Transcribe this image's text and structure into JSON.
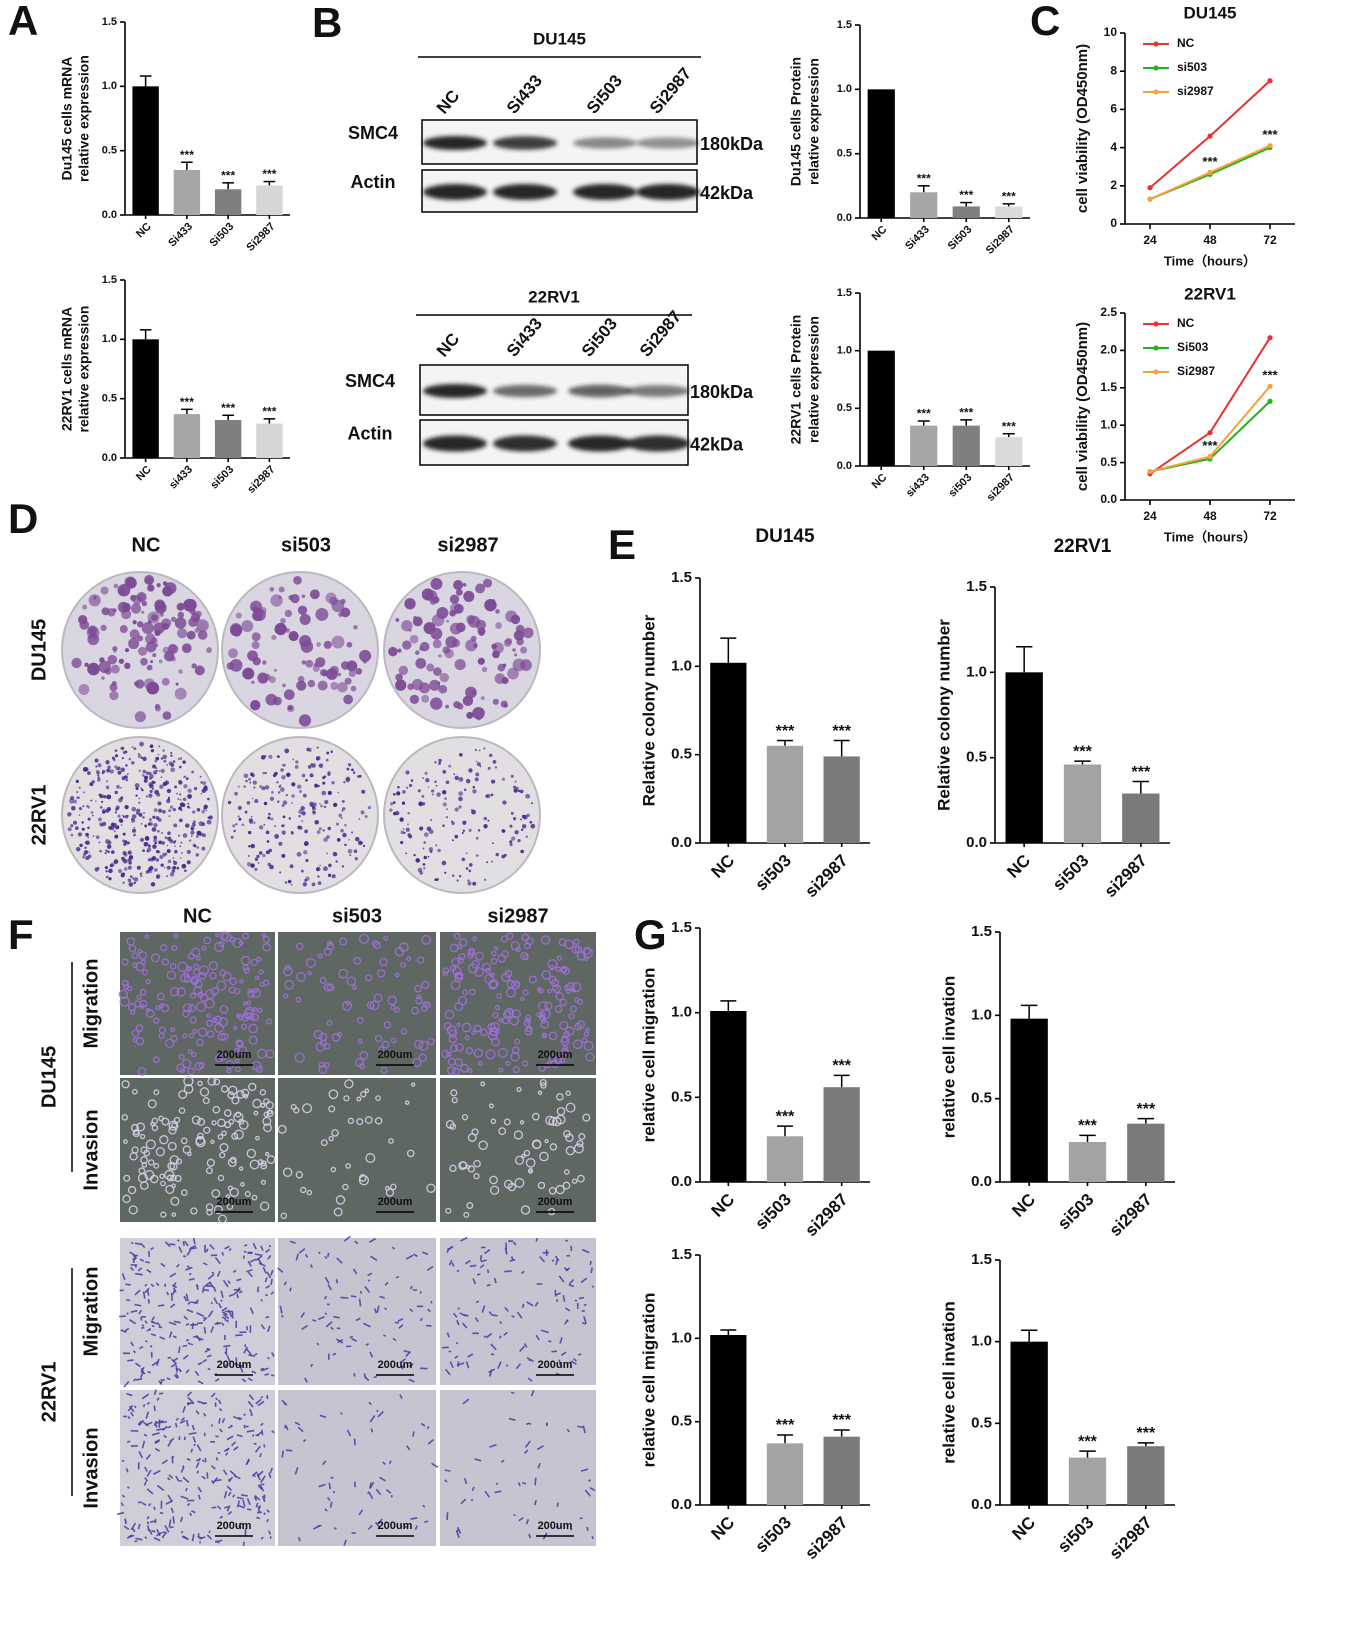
{
  "panel_labels": [
    "A",
    "B",
    "C",
    "D",
    "E",
    "F",
    "G"
  ],
  "blots": [
    {
      "title": "DU145",
      "lanes": [
        "NC",
        "Si433",
        "Si503",
        "Si2987"
      ],
      "rows": [
        {
          "name": "SMC4",
          "size": "180kDa"
        },
        {
          "name": "Actin",
          "size": "42kDa"
        }
      ]
    },
    {
      "title": "22RV1",
      "lanes": [
        "NC",
        "Si433",
        "Si503",
        "Si2987"
      ],
      "rows": [
        {
          "name": "SMC4",
          "size": "180kDa"
        },
        {
          "name": "Actin",
          "size": "42kDa"
        }
      ]
    }
  ],
  "colony": {
    "columns": [
      "NC",
      "si503",
      "si2987"
    ],
    "rows": [
      "DU145",
      "22RV1"
    ]
  },
  "transwell": {
    "columns": [
      "NC",
      "si503",
      "si2987"
    ],
    "groups": [
      {
        "name": "DU145",
        "rows": [
          "Migration",
          "Invasion"
        ]
      },
      {
        "name": "22RV1",
        "rows": [
          "Migration",
          "Invasion"
        ]
      }
    ],
    "scale_bar": "200um"
  },
  "chart_data": [
    {
      "type": "bar",
      "ylabel": [
        "Du145 cells mRNA",
        "relative expression"
      ],
      "categories": [
        "NC",
        "Si433",
        "Si503",
        "Si2987"
      ],
      "values": [
        1.0,
        0.35,
        0.2,
        0.23
      ],
      "errors": [
        0.08,
        0.06,
        0.05,
        0.03
      ],
      "significance": [
        null,
        "***",
        "***",
        "***"
      ],
      "colors": [
        "#000000",
        "#a6a6a8",
        "#7f7f7f",
        "#d6d6d6"
      ],
      "ylim": [
        0,
        1.5
      ],
      "yticks": [
        {
          "value": 0,
          "label": "0.0"
        },
        0.5,
        {
          "value": 1,
          "label": "1.0"
        },
        1.5
      ]
    },
    {
      "type": "bar",
      "ylabel": [
        "22RV1 cells mRNA",
        "relative expression"
      ],
      "categories": [
        "NC",
        "si433",
        "si503",
        "si2987"
      ],
      "values": [
        1.0,
        0.37,
        0.32,
        0.29
      ],
      "errors": [
        0.08,
        0.04,
        0.04,
        0.04
      ],
      "significance": [
        null,
        "***",
        "***",
        "***"
      ],
      "colors": [
        "#000000",
        "#a6a6a8",
        "#7f7f7f",
        "#d6d6d6"
      ],
      "ylim": [
        0,
        1.5
      ],
      "yticks": [
        {
          "value": 0,
          "label": "0.0"
        },
        0.5,
        {
          "value": 1,
          "label": "1.0"
        },
        1.5
      ]
    },
    {
      "type": "bar",
      "ylabel": [
        "Du145 cells Protein",
        "relative expression"
      ],
      "categories": [
        "NC",
        "Si433",
        "Si503",
        "Si2987"
      ],
      "values": [
        1.0,
        0.2,
        0.09,
        0.09
      ],
      "errors": [
        null,
        0.05,
        0.03,
        0.02
      ],
      "significance": [
        null,
        "***",
        "***",
        "***"
      ],
      "colors": [
        "#000000",
        "#a6a6a8",
        "#7f7f7f",
        "#dadada"
      ],
      "ylim": [
        0,
        1.5
      ],
      "yticks": [
        {
          "value": 0,
          "label": "0.0"
        },
        0.5,
        {
          "value": 1,
          "label": "1.0"
        },
        1.5
      ]
    },
    {
      "type": "bar",
      "ylabel": [
        "22RV1 cells Protein",
        "relative expression"
      ],
      "categories": [
        "NC",
        "si433",
        "si503",
        "si2987"
      ],
      "values": [
        1.0,
        0.35,
        0.35,
        0.25
      ],
      "errors": [
        null,
        0.04,
        0.05,
        0.03
      ],
      "significance": [
        null,
        "***",
        "***",
        "***"
      ],
      "colors": [
        "#000000",
        "#a6a6a8",
        "#7f7f7f",
        "#dadada"
      ],
      "ylim": [
        0,
        1.5
      ],
      "yticks": [
        {
          "value": 0,
          "label": "0.0"
        },
        0.5,
        {
          "value": 1,
          "label": "1.0"
        },
        1.5
      ]
    },
    {
      "type": "line",
      "title": "DU145",
      "xlabel": "Time（hours）",
      "ylabel": [
        "cell viability (OD450nm)"
      ],
      "x": [
        24,
        48,
        72
      ],
      "series": [
        {
          "name": "NC",
          "color": "#e8322f",
          "values": [
            1.9,
            4.6,
            7.5
          ]
        },
        {
          "name": "si503",
          "color": "#1fb31f",
          "values": [
            1.3,
            2.6,
            4.0
          ]
        },
        {
          "name": "si2987",
          "color": "#f5a23a",
          "values": [
            1.3,
            2.7,
            4.1
          ]
        }
      ],
      "significance": [
        null,
        "***",
        "***"
      ],
      "xlim": [
        14,
        82
      ],
      "xticks": [
        24,
        48,
        72
      ],
      "ylim": [
        0,
        10
      ],
      "yticks": [
        0,
        2,
        4,
        6,
        8,
        10
      ]
    },
    {
      "type": "line",
      "title": "22RV1",
      "xlabel": "Time（hours）",
      "ylabel": [
        "cell viability (OD450nm)"
      ],
      "x": [
        24,
        48,
        72
      ],
      "series": [
        {
          "name": "NC",
          "color": "#e8322f",
          "values": [
            0.35,
            0.9,
            2.17
          ]
        },
        {
          "name": "Si503",
          "color": "#1fb31f",
          "values": [
            0.38,
            0.55,
            1.32
          ]
        },
        {
          "name": "Si2987",
          "color": "#f5a23a",
          "values": [
            0.38,
            0.58,
            1.52
          ]
        }
      ],
      "significance": [
        null,
        "***",
        "***"
      ],
      "xlim": [
        14,
        82
      ],
      "xticks": [
        24,
        48,
        72
      ],
      "ylim": [
        0,
        2.5
      ],
      "yticks": [
        {
          "value": 0,
          "label": "0.0"
        },
        0.5,
        {
          "value": 1,
          "label": "1.0"
        },
        1.5,
        {
          "value": 2,
          "label": "2.0"
        },
        2.5
      ]
    },
    {
      "type": "bar",
      "title": "DU145",
      "ylabel": [
        "Relative colony number"
      ],
      "categories": [
        "NC",
        "si503",
        "si2987"
      ],
      "values": [
        1.02,
        0.55,
        0.49
      ],
      "errors": [
        0.14,
        0.03,
        0.09
      ],
      "significance": [
        null,
        "***",
        "***"
      ],
      "colors": [
        "#000000",
        "#a3a3a6",
        "#7a7a7a"
      ],
      "ylim": [
        0,
        1.5
      ],
      "yticks": [
        {
          "value": 0,
          "label": "0.0"
        },
        0.5,
        {
          "value": 1,
          "label": "1.0"
        },
        1.5
      ]
    },
    {
      "type": "bar",
      "title": "22RV1",
      "ylabel": [
        "Relative colony number"
      ],
      "categories": [
        "NC",
        "si503",
        "si2987"
      ],
      "values": [
        1.0,
        0.46,
        0.29
      ],
      "errors": [
        0.15,
        0.02,
        0.07
      ],
      "significance": [
        null,
        "***",
        "***"
      ],
      "colors": [
        "#000000",
        "#a3a3a6",
        "#7a7a7a"
      ],
      "ylim": [
        0,
        1.5
      ],
      "yticks": [
        {
          "value": 0,
          "label": "0.0"
        },
        0.5,
        {
          "value": 1,
          "label": "1.0"
        },
        1.5
      ]
    },
    {
      "type": "bar",
      "ylabel": [
        "relative cell migration"
      ],
      "categories": [
        "NC",
        "si503",
        "si2987"
      ],
      "values": [
        1.01,
        0.27,
        0.56
      ],
      "errors": [
        0.06,
        0.06,
        0.07
      ],
      "significance": [
        null,
        "***",
        "***"
      ],
      "colors": [
        "#000000",
        "#a3a3a6",
        "#7a7a7a"
      ],
      "ylim": [
        0,
        1.5
      ],
      "yticks": [
        {
          "value": 0,
          "label": "0.0"
        },
        0.5,
        {
          "value": 1,
          "label": "1.0"
        },
        1.5
      ]
    },
    {
      "type": "bar",
      "ylabel": [
        "relative cell invation"
      ],
      "categories": [
        "NC",
        "si503",
        "si2987"
      ],
      "values": [
        0.98,
        0.24,
        0.35
      ],
      "errors": [
        0.08,
        0.04,
        0.03
      ],
      "significance": [
        null,
        "***",
        "***"
      ],
      "colors": [
        "#000000",
        "#a3a3a6",
        "#7a7a7a"
      ],
      "ylim": [
        0,
        1.5
      ],
      "yticks": [
        {
          "value": 0,
          "label": "0.0"
        },
        0.5,
        {
          "value": 1,
          "label": "1.0"
        },
        1.5
      ]
    },
    {
      "type": "bar",
      "ylabel": [
        "relative cell migration"
      ],
      "categories": [
        "NC",
        "si503",
        "si2987"
      ],
      "values": [
        1.02,
        0.37,
        0.41
      ],
      "errors": [
        0.03,
        0.05,
        0.04
      ],
      "significance": [
        null,
        "***",
        "***"
      ],
      "colors": [
        "#000000",
        "#a3a3a6",
        "#7a7a7a"
      ],
      "ylim": [
        0,
        1.5
      ],
      "yticks": [
        {
          "value": 0,
          "label": "0.0"
        },
        0.5,
        {
          "value": 1,
          "label": "1.0"
        },
        1.5
      ]
    },
    {
      "type": "bar",
      "ylabel": [
        "relative cell invation"
      ],
      "categories": [
        "NC",
        "si503",
        "si2987"
      ],
      "values": [
        1.0,
        0.29,
        0.36
      ],
      "errors": [
        0.07,
        0.04,
        0.02
      ],
      "significance": [
        null,
        "***",
        "***"
      ],
      "colors": [
        "#000000",
        "#a3a3a6",
        "#7a7a7a"
      ],
      "ylim": [
        0,
        1.5
      ],
      "yticks": [
        {
          "value": 0,
          "label": "0.0"
        },
        0.5,
        {
          "value": 1,
          "label": "1.0"
        },
        1.5
      ]
    }
  ]
}
